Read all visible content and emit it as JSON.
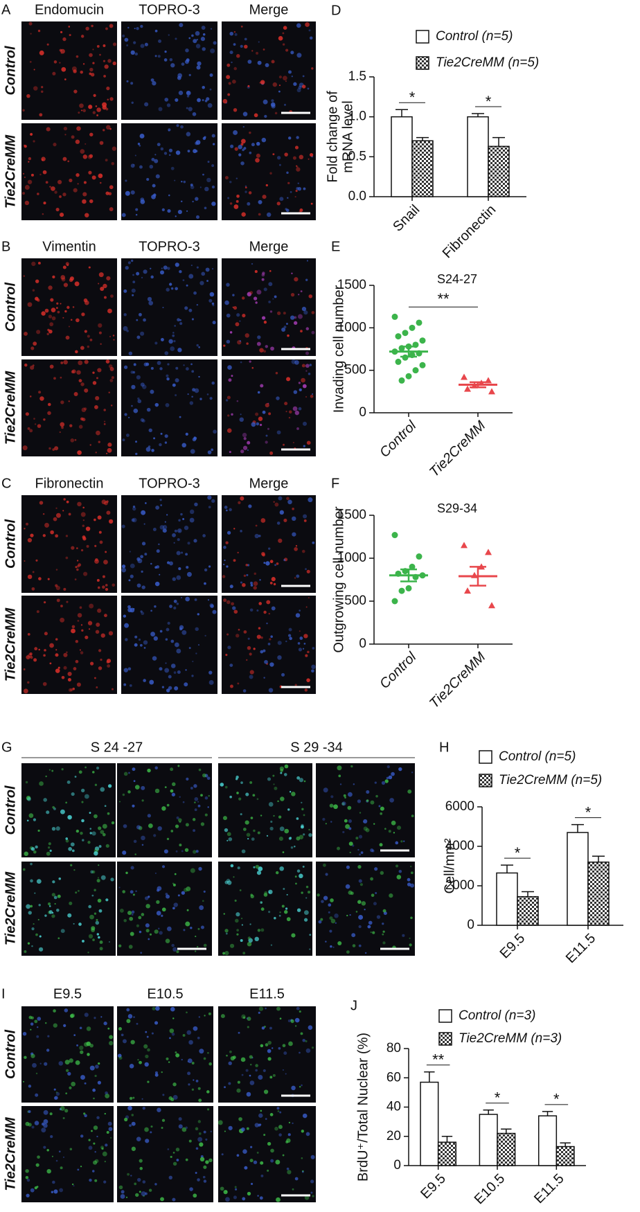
{
  "panels": [
    {
      "letter": "A",
      "columns": [
        "Endomucin",
        "TOPRO-3",
        "Merge"
      ],
      "rows": [
        "Control",
        "Tie2CreMM"
      ]
    },
    {
      "letter": "B",
      "columns": [
        "Vimentin",
        "TOPRO-3",
        "Merge"
      ],
      "rows": [
        "Control",
        "Tie2CreMM"
      ]
    },
    {
      "letter": "C",
      "columns": [
        "Fibronectin",
        "TOPRO-3",
        "Merge"
      ],
      "rows": [
        "Control",
        "Tie2CreMM"
      ]
    },
    {
      "letter": "G",
      "groups": [
        "S 24 -27",
        "S 29 -34"
      ],
      "rows": [
        "Control",
        "Tie2CreMM"
      ]
    },
    {
      "letter": "I",
      "columns": [
        "E9.5",
        "E10.5",
        "E11.5"
      ],
      "rows": [
        "Control",
        "Tie2CreMM"
      ]
    }
  ],
  "chart_data": [
    {
      "type": "bar",
      "letter": "D",
      "ylabel": [
        "Fold change of",
        "mRNA level"
      ],
      "categories": [
        "Snail",
        "Fibronectin"
      ],
      "series": [
        {
          "name": "Control (n=5)",
          "color": "#ffffff",
          "values": [
            1.0,
            1.0
          ],
          "errors": [
            0.09,
            0.04
          ]
        },
        {
          "name": "Tie2CreMM (n=5)",
          "color": "#888888",
          "hatch": true,
          "values": [
            0.7,
            0.63
          ],
          "errors": [
            0.04,
            0.11
          ]
        }
      ],
      "ylim": [
        0,
        1.5
      ],
      "yticks": [
        {
          "value": 0,
          "label": "0.0"
        },
        {
          "value": 0.5,
          "label": "0.5"
        },
        {
          "value": 1,
          "label": "1.0"
        },
        {
          "value": 1.5,
          "label": "1.5"
        }
      ],
      "significance": [
        "*",
        "*"
      ]
    },
    {
      "type": "strip",
      "letter": "E",
      "title": "S24-27",
      "ylabel": "Invading cell number",
      "series": [
        {
          "name": "Control",
          "color": "#3cb44b",
          "marker": "circle",
          "values": [
            1130,
            1060,
            1000,
            940,
            900,
            850,
            800,
            780,
            760,
            720,
            700,
            680,
            650,
            600,
            560,
            500,
            430,
            380
          ],
          "mean": 720,
          "sem": 60
        },
        {
          "name": "Tie2CreMM",
          "color": "#e8474c",
          "marker": "triangle",
          "values": [
            420,
            380,
            350,
            320,
            280,
            250
          ],
          "mean": 330,
          "sem": 30
        }
      ],
      "ylim": [
        0,
        1500
      ],
      "yticks": [
        0,
        500,
        1000,
        1500
      ],
      "significance": "**"
    },
    {
      "type": "strip",
      "letter": "F",
      "title": "S29-34",
      "ylabel": "Outgrowing cell number",
      "series": [
        {
          "name": "Control",
          "color": "#3cb44b",
          "marker": "circle",
          "values": [
            1270,
            1020,
            900,
            850,
            820,
            800,
            780,
            650,
            620,
            500
          ],
          "mean": 800,
          "sem": 70
        },
        {
          "name": "Tie2CreMM",
          "color": "#e8474c",
          "marker": "triangle",
          "values": [
            1150,
            1070,
            900,
            800,
            620,
            450
          ],
          "mean": 790,
          "sem": 110
        }
      ],
      "ylim": [
        0,
        1500
      ],
      "yticks": [
        0,
        500,
        1000,
        1500
      ]
    },
    {
      "type": "bar",
      "letter": "H",
      "ylabel": "Cell/mm²",
      "categories": [
        "E9.5",
        "E11.5"
      ],
      "series": [
        {
          "name": "Control (n=5)",
          "color": "#ffffff",
          "values": [
            2650,
            4700
          ],
          "errors": [
            400,
            400
          ]
        },
        {
          "name": "Tie2CreMM (n=5)",
          "color": "#888888",
          "hatch": true,
          "values": [
            1450,
            3200
          ],
          "errors": [
            250,
            300
          ]
        }
      ],
      "ylim": [
        0,
        6000
      ],
      "yticks": [
        0,
        2000,
        4000,
        6000
      ],
      "significance": [
        "*",
        "*"
      ]
    },
    {
      "type": "bar",
      "letter": "J",
      "ylabel": "BrdU⁺/Total Nuclear (%)",
      "categories": [
        "E9.5",
        "E10.5",
        "E11.5"
      ],
      "series": [
        {
          "name": "Control (n=3)",
          "color": "#ffffff",
          "values": [
            57,
            35,
            34
          ],
          "errors": [
            7,
            3,
            3
          ]
        },
        {
          "name": "Tie2CreMM (n=3)",
          "color": "#888888",
          "hatch": true,
          "values": [
            16,
            22,
            13
          ],
          "errors": [
            4,
            3,
            2.5
          ]
        }
      ],
      "ylim": [
        0,
        80
      ],
      "yticks": [
        0,
        20,
        40,
        60,
        80
      ],
      "significance": [
        "**",
        "*",
        "*"
      ]
    }
  ]
}
